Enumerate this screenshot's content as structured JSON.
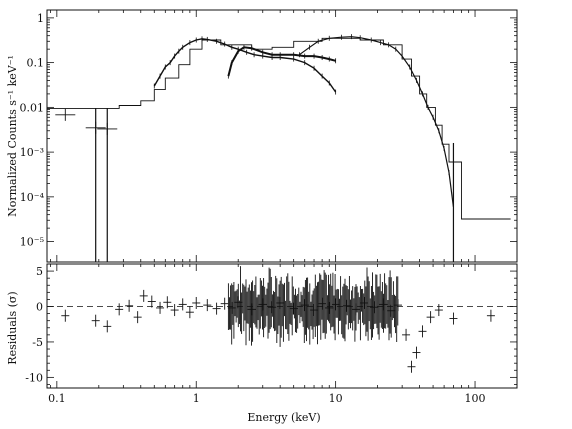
{
  "chart_data": [
    {
      "type": "scatter",
      "panel": "spectrum",
      "xlabel": "Energy (keV)",
      "ylabel": "Normalized Counts s⁻¹ keV⁻¹",
      "xscale": "log",
      "yscale": "log",
      "xlim": [
        0.085,
        200
      ],
      "ylim": [
        3.5e-06,
        1.5
      ],
      "grid": false,
      "legend": "none",
      "x_ticks": [
        {
          "value": 0.1,
          "label": "0.1"
        },
        {
          "value": 1,
          "label": "1"
        },
        {
          "value": 10,
          "label": "10"
        },
        {
          "value": 100,
          "label": "100"
        }
      ],
      "y_ticks": [
        {
          "value": 1,
          "label": "1"
        },
        {
          "value": 0.1,
          "label": "0.1"
        },
        {
          "value": 0.01,
          "label": "0.01"
        },
        {
          "value": 0.001,
          "label": "10⁻³"
        },
        {
          "value": 0.0001,
          "label": "10⁻⁴"
        },
        {
          "value": 1e-05,
          "label": "10⁻⁵"
        }
      ],
      "model_steps": [
        [
          0.085,
          0.0095
        ],
        [
          0.28,
          0.0095
        ],
        [
          0.28,
          0.011
        ],
        [
          0.4,
          0.011
        ],
        [
          0.4,
          0.014
        ],
        [
          0.5,
          0.014
        ],
        [
          0.5,
          0.025
        ],
        [
          0.6,
          0.025
        ],
        [
          0.6,
          0.045
        ],
        [
          0.75,
          0.045
        ],
        [
          0.75,
          0.09
        ],
        [
          0.9,
          0.09
        ],
        [
          0.9,
          0.2
        ],
        [
          1.1,
          0.2
        ],
        [
          1.1,
          0.32
        ],
        [
          1.5,
          0.32
        ],
        [
          1.5,
          0.25
        ],
        [
          2.5,
          0.25
        ],
        [
          2.5,
          0.2
        ],
        [
          3.5,
          0.2
        ],
        [
          3.5,
          0.22
        ],
        [
          5,
          0.22
        ],
        [
          5,
          0.3
        ],
        [
          8,
          0.3
        ],
        [
          8,
          0.35
        ],
        [
          15,
          0.35
        ],
        [
          15,
          0.32
        ],
        [
          22,
          0.32
        ],
        [
          22,
          0.25
        ],
        [
          30,
          0.25
        ],
        [
          30,
          0.12
        ],
        [
          35,
          0.12
        ],
        [
          35,
          0.05
        ],
        [
          40,
          0.05
        ],
        [
          40,
          0.02
        ],
        [
          45,
          0.02
        ],
        [
          45,
          0.01
        ],
        [
          52,
          0.01
        ],
        [
          52,
          0.004
        ],
        [
          58,
          0.004
        ],
        [
          58,
          0.0015
        ],
        [
          65,
          0.0015
        ],
        [
          65,
          0.0006
        ],
        [
          80,
          0.0006
        ],
        [
          80,
          3.2e-05
        ],
        [
          180,
          3.2e-05
        ]
      ],
      "lecs_points": [
        [
          0.5,
          0.03
        ],
        [
          0.55,
          0.05
        ],
        [
          0.6,
          0.08
        ],
        [
          0.65,
          0.1
        ],
        [
          0.7,
          0.14
        ],
        [
          0.75,
          0.18
        ],
        [
          0.8,
          0.22
        ],
        [
          0.9,
          0.28
        ],
        [
          1.0,
          0.32
        ],
        [
          1.1,
          0.34
        ],
        [
          1.2,
          0.33
        ],
        [
          1.4,
          0.3
        ],
        [
          1.6,
          0.26
        ],
        [
          1.8,
          0.22
        ],
        [
          2.0,
          0.2
        ],
        [
          2.3,
          0.17
        ],
        [
          2.6,
          0.15
        ],
        [
          3.0,
          0.14
        ],
        [
          3.5,
          0.13
        ],
        [
          4.0,
          0.13
        ],
        [
          5.0,
          0.12
        ],
        [
          6.0,
          0.1
        ],
        [
          7.0,
          0.075
        ],
        [
          8.0,
          0.05
        ],
        [
          9.0,
          0.035
        ],
        [
          10.0,
          0.022
        ]
      ],
      "mecs_points": [
        [
          1.7,
          0.05
        ],
        [
          1.8,
          0.1
        ],
        [
          2.0,
          0.18
        ],
        [
          2.2,
          0.22
        ],
        [
          2.5,
          0.21
        ],
        [
          3.0,
          0.17
        ],
        [
          3.5,
          0.15
        ],
        [
          4.0,
          0.15
        ],
        [
          5.0,
          0.15
        ],
        [
          6.0,
          0.14
        ],
        [
          7.0,
          0.14
        ],
        [
          8.0,
          0.13
        ],
        [
          9.0,
          0.12
        ],
        [
          10.0,
          0.11
        ]
      ],
      "pds_points": [
        [
          5.5,
          0.15
        ],
        [
          6.5,
          0.22
        ],
        [
          7.5,
          0.3
        ],
        [
          9.0,
          0.35
        ],
        [
          11.0,
          0.37
        ],
        [
          13.0,
          0.38
        ],
        [
          15.0,
          0.36
        ],
        [
          18.0,
          0.32
        ],
        [
          21.0,
          0.28
        ],
        [
          24.0,
          0.25
        ],
        [
          27.0,
          0.2
        ],
        [
          30.0,
          0.14
        ],
        [
          34.0,
          0.08
        ],
        [
          38.0,
          0.04
        ],
        [
          42.0,
          0.02
        ],
        [
          46.0,
          0.01
        ],
        [
          50.0,
          0.006
        ],
        [
          55.0,
          0.003
        ],
        [
          60.0,
          0.0012
        ],
        [
          65.0,
          0.00035
        ],
        [
          70.0,
          6e-05
        ]
      ],
      "low_energy_points": [
        [
          0.115,
          0.0068
        ],
        [
          0.19,
          0.0035
        ],
        [
          0.23,
          0.0033
        ]
      ],
      "drop_lines": [
        [
          0.19,
          3.55e-06,
          0.0095
        ],
        [
          0.23,
          3.55e-06,
          0.0095
        ],
        [
          70.0,
          3.55e-06,
          0.0016
        ]
      ]
    },
    {
      "type": "scatter",
      "panel": "residuals",
      "xlabel": "Energy (keV)",
      "ylabel": "Residuals (σ)",
      "xscale": "log",
      "xlim": [
        0.085,
        200
      ],
      "ylim": [
        -11.5,
        6
      ],
      "zero_line": true,
      "y_ticks": [
        {
          "value": 5,
          "label": "5"
        },
        {
          "value": 0,
          "label": "0"
        },
        {
          "value": -5,
          "label": "-5"
        },
        {
          "value": -10,
          "label": "-10"
        }
      ],
      "x_ticks": [
        {
          "value": 0.1,
          "label": "0.1"
        },
        {
          "value": 1,
          "label": "1"
        },
        {
          "value": 10,
          "label": "10"
        },
        {
          "value": 100,
          "label": "100"
        }
      ],
      "points": [
        [
          0.115,
          -1.3
        ],
        [
          0.19,
          -2.0
        ],
        [
          0.23,
          -2.8
        ],
        [
          0.28,
          -0.4
        ],
        [
          0.33,
          0.1
        ],
        [
          0.38,
          -1.5
        ],
        [
          0.42,
          1.5
        ],
        [
          0.48,
          0.7
        ],
        [
          0.55,
          -0.2
        ],
        [
          0.62,
          0.6
        ],
        [
          0.7,
          -0.5
        ],
        [
          0.8,
          0.3
        ],
        [
          0.9,
          -0.8
        ],
        [
          1.0,
          0.5
        ],
        [
          1.2,
          0.2
        ],
        [
          1.4,
          -0.3
        ],
        [
          1.6,
          0.4
        ],
        [
          1.8,
          -0.2
        ],
        [
          2.0,
          0.6
        ],
        [
          2.5,
          -0.4
        ],
        [
          3.0,
          0.3
        ],
        [
          3.5,
          -0.1
        ],
        [
          4.0,
          0.5
        ],
        [
          5.0,
          -0.3
        ],
        [
          6.0,
          0.2
        ],
        [
          7.0,
          -0.5
        ],
        [
          8.0,
          0.4
        ],
        [
          9.0,
          -0.2
        ],
        [
          10.0,
          0.3
        ],
        [
          12.0,
          0.1
        ],
        [
          14.0,
          -0.4
        ],
        [
          16.0,
          0.5
        ],
        [
          19.0,
          -0.1
        ],
        [
          22.0,
          0.3
        ],
        [
          25.0,
          -0.6
        ],
        [
          28.0,
          0.2
        ],
        [
          32.0,
          -4.0
        ],
        [
          35.0,
          -8.5
        ],
        [
          38.0,
          -6.5
        ],
        [
          42.0,
          -3.5
        ],
        [
          48.0,
          -1.5
        ],
        [
          55.0,
          -0.5
        ],
        [
          70.0,
          -1.7
        ],
        [
          130.0,
          -1.3
        ]
      ]
    }
  ]
}
